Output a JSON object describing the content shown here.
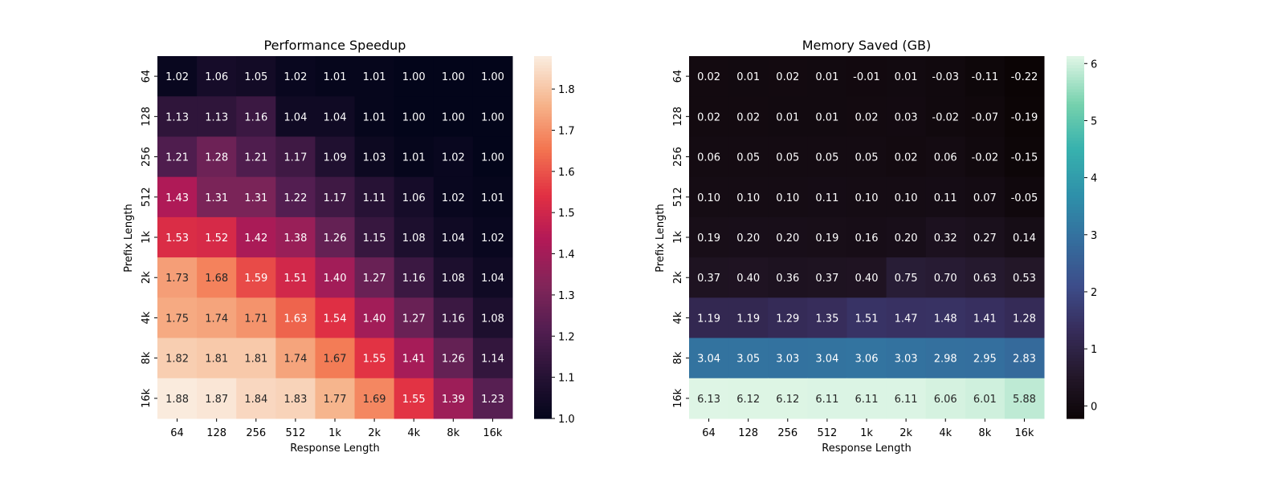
{
  "chart_data": [
    {
      "type": "heatmap",
      "title": "Performance Speedup",
      "xlabel": "Response Length",
      "ylabel": "Prefix Length",
      "x_categories": [
        "64",
        "128",
        "256",
        "512",
        "1k",
        "2k",
        "4k",
        "8k",
        "16k"
      ],
      "y_categories": [
        "64",
        "128",
        "256",
        "512",
        "1k",
        "2k",
        "4k",
        "8k",
        "16k"
      ],
      "values": [
        [
          1.02,
          1.06,
          1.05,
          1.02,
          1.01,
          1.01,
          1.0,
          1.0,
          1.0
        ],
        [
          1.13,
          1.13,
          1.16,
          1.04,
          1.04,
          1.01,
          1.0,
          1.0,
          1.0
        ],
        [
          1.21,
          1.28,
          1.21,
          1.17,
          1.09,
          1.03,
          1.01,
          1.02,
          1.0
        ],
        [
          1.43,
          1.31,
          1.31,
          1.22,
          1.17,
          1.11,
          1.06,
          1.02,
          1.01
        ],
        [
          1.53,
          1.52,
          1.42,
          1.38,
          1.26,
          1.15,
          1.08,
          1.04,
          1.02
        ],
        [
          1.73,
          1.68,
          1.59,
          1.51,
          1.4,
          1.27,
          1.16,
          1.08,
          1.04
        ],
        [
          1.75,
          1.74,
          1.71,
          1.63,
          1.54,
          1.4,
          1.27,
          1.16,
          1.08
        ],
        [
          1.82,
          1.81,
          1.81,
          1.74,
          1.67,
          1.55,
          1.41,
          1.26,
          1.14
        ],
        [
          1.88,
          1.87,
          1.84,
          1.83,
          1.77,
          1.69,
          1.55,
          1.39,
          1.23
        ]
      ],
      "colormap": "rocket",
      "colorbar_range": [
        1.0,
        1.88
      ],
      "colorbar_ticks": [
        "1.0",
        "1.1",
        "1.2",
        "1.3",
        "1.4",
        "1.5",
        "1.6",
        "1.7",
        "1.8"
      ],
      "annotated": true
    },
    {
      "type": "heatmap",
      "title": "Memory Saved (GB)",
      "xlabel": "Response Length",
      "ylabel": "Prefix Length",
      "x_categories": [
        "64",
        "128",
        "256",
        "512",
        "1k",
        "2k",
        "4k",
        "8k",
        "16k"
      ],
      "y_categories": [
        "64",
        "128",
        "256",
        "512",
        "1k",
        "2k",
        "4k",
        "8k",
        "16k"
      ],
      "values": [
        [
          0.02,
          0.01,
          0.02,
          0.01,
          -0.01,
          0.01,
          -0.03,
          -0.11,
          -0.22
        ],
        [
          0.02,
          0.02,
          0.01,
          0.01,
          0.02,
          0.03,
          -0.02,
          -0.07,
          -0.19
        ],
        [
          0.06,
          0.05,
          0.05,
          0.05,
          0.05,
          0.02,
          0.06,
          -0.02,
          -0.15
        ],
        [
          0.1,
          0.1,
          0.1,
          0.11,
          0.1,
          0.1,
          0.11,
          0.07,
          -0.05
        ],
        [
          0.19,
          0.2,
          0.2,
          0.19,
          0.16,
          0.2,
          0.32,
          0.27,
          0.14
        ],
        [
          0.37,
          0.4,
          0.36,
          0.37,
          0.4,
          0.75,
          0.7,
          0.63,
          0.53
        ],
        [
          1.19,
          1.19,
          1.29,
          1.35,
          1.51,
          1.47,
          1.48,
          1.41,
          1.28
        ],
        [
          3.04,
          3.05,
          3.03,
          3.04,
          3.06,
          3.03,
          2.98,
          2.95,
          2.83
        ],
        [
          6.13,
          6.12,
          6.12,
          6.11,
          6.11,
          6.11,
          6.06,
          6.01,
          5.88
        ]
      ],
      "colormap": "mako",
      "colorbar_range": [
        -0.22,
        6.13
      ],
      "colorbar_ticks": [
        "0",
        "1",
        "2",
        "3",
        "4",
        "5",
        "6"
      ],
      "annotated": true
    }
  ]
}
